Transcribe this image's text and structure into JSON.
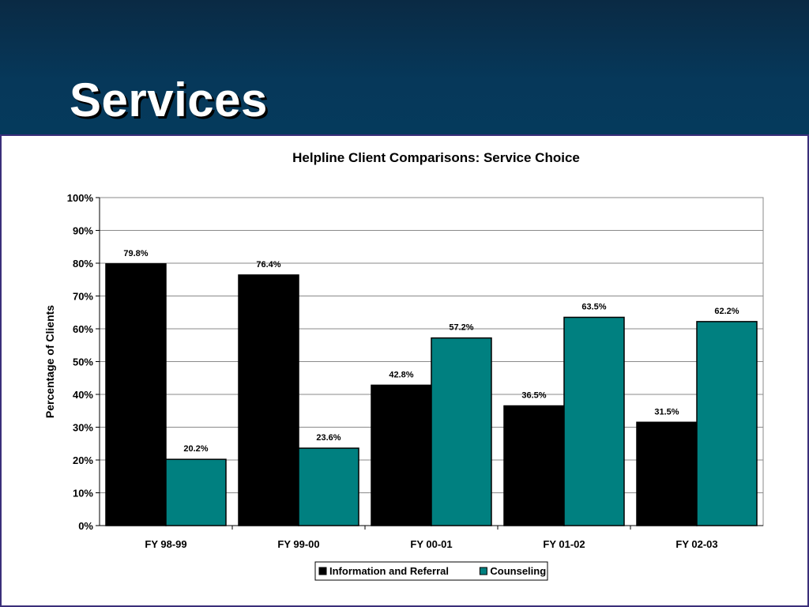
{
  "slide": {
    "title": "Services"
  },
  "colors": {
    "header_band": "#053a5c",
    "frame_border": "#3a2f7a",
    "series_1": "#000000",
    "series_2": "#008080"
  },
  "chart_data": {
    "type": "bar",
    "title": "Helpline Client Comparisons: Service Choice",
    "xlabel": "",
    "ylabel": "Percentage of Clients",
    "ylim": [
      0,
      100
    ],
    "y_ticks": [
      "0%",
      "10%",
      "20%",
      "30%",
      "40%",
      "50%",
      "60%",
      "70%",
      "80%",
      "90%",
      "100%"
    ],
    "categories": [
      "FY 98-99",
      "FY 99-00",
      "FY 00-01",
      "FY 01-02",
      "FY 02-03"
    ],
    "series": [
      {
        "name": "Information and Referral",
        "color": "#000000",
        "values": [
          79.8,
          76.4,
          42.8,
          36.5,
          31.5
        ],
        "labels": [
          "79.8%",
          "76.4%",
          "42.8%",
          "36.5%",
          "31.5%"
        ]
      },
      {
        "name": "Counseling",
        "color": "#008080",
        "values": [
          20.2,
          23.6,
          57.2,
          63.5,
          62.2
        ],
        "labels": [
          "20.2%",
          "23.6%",
          "57.2%",
          "63.5%",
          "62.2%"
        ]
      }
    ],
    "grid": true,
    "legend": "bottom"
  }
}
